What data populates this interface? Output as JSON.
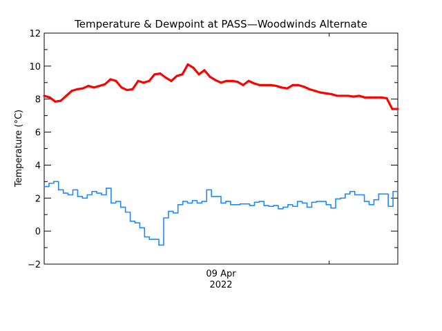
{
  "chart_data": {
    "type": "line",
    "title": "Temperature & Dewpoint at PASS—Woodwinds Alternate",
    "xlabel": "",
    "ylabel": "Temperature (°C)",
    "x_tick_labels": [
      "09 Apr",
      "2022"
    ],
    "ylim": [
      -2,
      12
    ],
    "y_ticks": [
      -2,
      0,
      2,
      4,
      6,
      8,
      10,
      12
    ],
    "grid": false,
    "series": [
      {
        "color": "#ff0000",
        "values": [
          8.2,
          8.1,
          7.85,
          7.9,
          8.2,
          8.5,
          8.6,
          8.65,
          8.8,
          8.7,
          8.8,
          8.9,
          9.2,
          9.1,
          8.7,
          8.55,
          8.6,
          9.1,
          9.0,
          9.1,
          9.5,
          9.55,
          9.3,
          9.1,
          9.4,
          9.5,
          10.1,
          9.9,
          9.5,
          9.75,
          9.35,
          9.15,
          9.0,
          9.1,
          9.1,
          9.05,
          8.85,
          9.1,
          8.95,
          8.85,
          8.85,
          8.85,
          8.8,
          8.7,
          8.65,
          8.85,
          8.85,
          8.75,
          8.6,
          8.5,
          8.4,
          8.35,
          8.3,
          8.2,
          8.2,
          8.2,
          8.15,
          8.2,
          8.1,
          8.1,
          8.1,
          8.1,
          8.05,
          7.4,
          7.4
        ]
      },
      {
        "color": "#1e88ff",
        "values": [
          2.7,
          2.9,
          3.0,
          2.5,
          2.3,
          2.2,
          2.5,
          2.1,
          2.0,
          2.2,
          2.4,
          2.3,
          2.2,
          2.6,
          1.7,
          1.8,
          1.45,
          1.15,
          0.6,
          0.5,
          0.2,
          -0.35,
          -0.5,
          -0.5,
          -0.85,
          0.8,
          1.2,
          1.1,
          1.6,
          1.8,
          1.7,
          1.85,
          1.7,
          1.8,
          2.5,
          2.1,
          2.1,
          1.7,
          1.8,
          1.6,
          1.6,
          1.65,
          1.65,
          1.55,
          1.75,
          1.8,
          1.55,
          1.5,
          1.55,
          1.35,
          1.45,
          1.6,
          1.5,
          1.8,
          1.7,
          1.45,
          1.75,
          1.8,
          1.8,
          1.6,
          1.4,
          1.95,
          2.0,
          2.25,
          2.4,
          2.2,
          2.2,
          1.8,
          1.6,
          1.9,
          2.25,
          2.25,
          1.5,
          2.4,
          2.4
        ]
      }
    ]
  }
}
